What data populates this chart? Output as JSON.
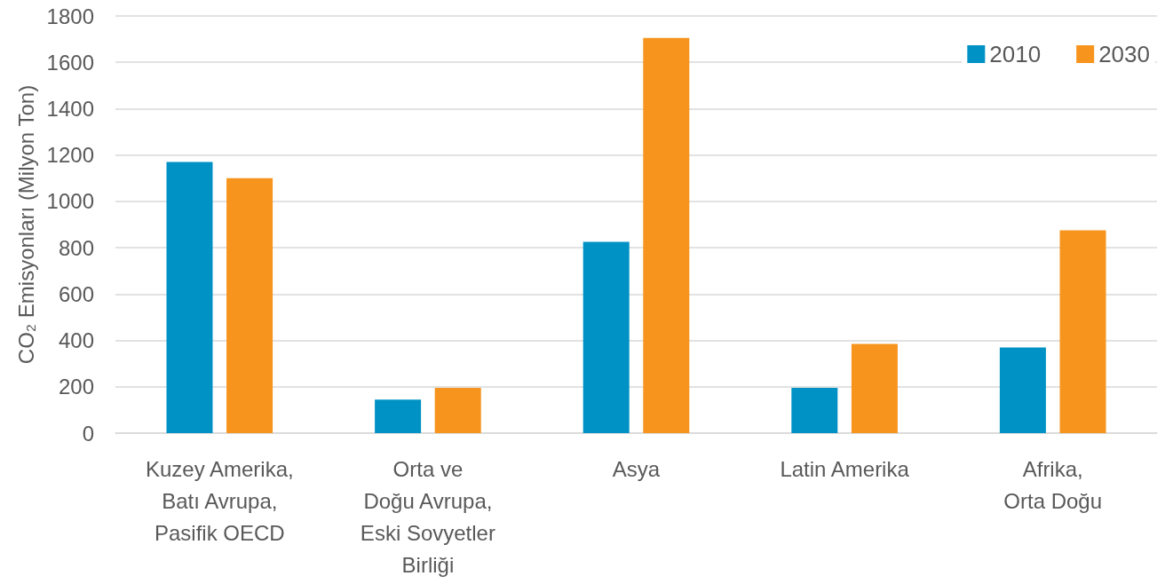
{
  "chart_data": {
    "type": "bar",
    "ylabel": "CO₂ Emisyonları (Milyon Ton)",
    "categories": [
      "Kuzey Amerika,\nBatı Avrupa,\nPasifik OECD",
      "Orta ve\nDoğu Avrupa,\nEski Sovyetler\nBirliği",
      "Asya",
      "Latin Amerika",
      "Afrika,\nOrta Doğu"
    ],
    "series": [
      {
        "name": "2010",
        "color": "#0092c5",
        "values": [
          1170,
          145,
          825,
          195,
          370
        ]
      },
      {
        "name": "2030",
        "color": "#f7941d",
        "values": [
          1100,
          195,
          1705,
          385,
          875
        ]
      }
    ],
    "ylim": [
      0,
      1800
    ],
    "yticks": [
      0,
      200,
      400,
      600,
      800,
      1000,
      1200,
      1400,
      1600,
      1800
    ],
    "grid": "y",
    "legend": "top right"
  }
}
